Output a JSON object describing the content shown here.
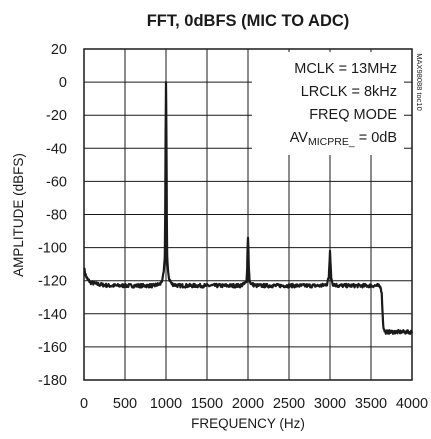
{
  "chart_data": {
    "type": "line",
    "title": "FFT, 0dBFS (MIC TO ADC)",
    "xlabel": "FREQUENCY (Hz)",
    "ylabel": "AMPLITUDE (dBFS)",
    "xlim": [
      0,
      4000
    ],
    "ylim": [
      -180,
      20
    ],
    "xticks": [
      "0",
      "500",
      "1000",
      "1500",
      "2000",
      "2500",
      "3000",
      "3500",
      "4000"
    ],
    "yticks": [
      "20",
      "0",
      "-20",
      "-40",
      "-60",
      "-80",
      "-100",
      "-120",
      "-140",
      "-160",
      "-180"
    ],
    "grid": true,
    "annotations": {
      "mclk": "MCLK = 13MHz",
      "lrclk": "LRCLK = 8kHz",
      "mode": "FREQ MODE",
      "av_main": "AV",
      "av_sub": "MICPRE_",
      "av_tail": " = 0dB"
    },
    "side_label": "MAX98088 toc10",
    "series": [
      {
        "color": "#1a1a1a",
        "x": [
          0,
          15,
          40,
          80,
          150,
          300,
          500,
          700,
          850,
          930,
          960,
          975,
          985,
          990,
          995,
          1000,
          1005,
          1010,
          1015,
          1025,
          1040,
          1070,
          1150,
          1300,
          1500,
          1700,
          1900,
          1960,
          1980,
          1990,
          1995,
          2000,
          2005,
          2010,
          2020,
          2040,
          2100,
          2300,
          2500,
          2700,
          2900,
          2965,
          2985,
          2995,
          3000,
          3005,
          3015,
          3035,
          3100,
          3300,
          3500,
          3580,
          3620,
          3630,
          3640,
          3650,
          3660,
          3680,
          3720,
          3800,
          3900,
          4000
        ],
        "y": [
          -112,
          -116,
          -119,
          -121,
          -122,
          -123,
          -123,
          -123,
          -123,
          -122,
          -119,
          -114,
          -105,
          -80,
          -30,
          0,
          -30,
          -80,
          -105,
          -115,
          -119,
          -122,
          -123,
          -123,
          -123,
          -123,
          -123,
          -122,
          -120,
          -112,
          -100,
          -94,
          -100,
          -112,
          -120,
          -122,
          -123,
          -123,
          -123,
          -123,
          -123,
          -122,
          -118,
          -108,
          -102,
          -108,
          -118,
          -122,
          -123,
          -123,
          -123,
          -123,
          -124,
          -128,
          -138,
          -147,
          -150,
          -151,
          -151,
          -151,
          -151,
          -151
        ]
      }
    ]
  }
}
